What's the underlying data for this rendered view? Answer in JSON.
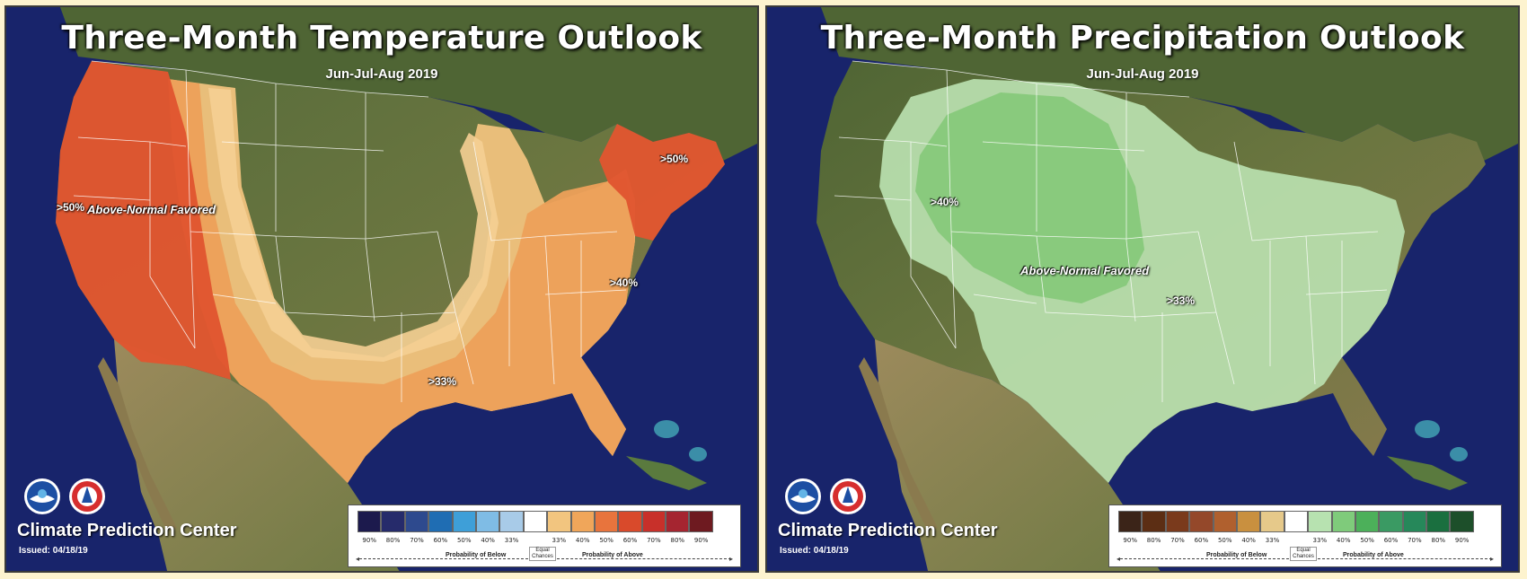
{
  "panels": [
    {
      "title": "Three-Month Temperature Outlook",
      "subtitle": "Jun-Jul-Aug 2019",
      "labels": {
        "favored": "Above-Normal Favored",
        "west": ">50%",
        "northeast": ">50%",
        "southeast": ">40%",
        "south": ">33%"
      },
      "footer": {
        "org": "Climate Prediction Center",
        "issued": "Issued: 04/18/19"
      },
      "legend": {
        "ticks": [
          "90%",
          "80%",
          "70%",
          "60%",
          "50%",
          "40%",
          "33%",
          "",
          "33%",
          "40%",
          "50%",
          "60%",
          "70%",
          "80%",
          "90%"
        ],
        "below": "Probability of Below",
        "equal": "Equal Chances",
        "above": "Probability of Above",
        "colors": [
          "#1c1a4d",
          "#262b6b",
          "#2e4a8e",
          "#1f6db3",
          "#3e9fd8",
          "#7fbce5",
          "#a8cbe8",
          "#ffffff",
          "#f2c57f",
          "#f0a65a",
          "#e8743d",
          "#d94a2b",
          "#c8302a",
          "#a52530",
          "#6e1a20"
        ]
      }
    },
    {
      "title": "Three-Month Precipitation Outlook",
      "subtitle": "Jun-Jul-Aug 2019",
      "labels": {
        "favored": "Above-Normal Favored",
        "center": ">40%",
        "east": ">33%"
      },
      "footer": {
        "org": "Climate Prediction Center",
        "issued": "Issued: 04/18/19"
      },
      "legend": {
        "ticks": [
          "90%",
          "80%",
          "70%",
          "60%",
          "50%",
          "40%",
          "33%",
          "",
          "33%",
          "40%",
          "50%",
          "60%",
          "70%",
          "80%",
          "90%"
        ],
        "below": "Probability of Below",
        "equal": "Equal Chances",
        "above": "Probability of Above",
        "colors": [
          "#3b2418",
          "#5c2e14",
          "#7a3a1c",
          "#94482a",
          "#b0602e",
          "#c9903f",
          "#e6c98a",
          "#ffffff",
          "#b7e2b0",
          "#7fcb7b",
          "#4cb05a",
          "#3a9a63",
          "#26885a",
          "#1a6f3f",
          "#1d4f2a"
        ]
      }
    }
  ]
}
